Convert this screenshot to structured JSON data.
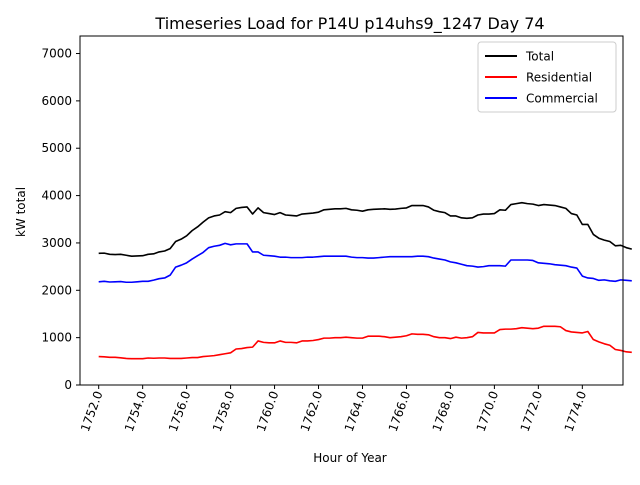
{
  "chart_data": {
    "type": "line",
    "title": "Timeseries Load for P14U p14uhs9_1247  Day 74",
    "xlabel": "Hour of Year",
    "ylabel": "kW total",
    "xlim": [
      1751.15,
      1775.85
    ],
    "ylim": [
      0,
      7370
    ],
    "xticks": [
      1752,
      1754,
      1756,
      1758,
      1760,
      1762,
      1764,
      1766,
      1768,
      1770,
      1772,
      1774
    ],
    "xtick_labels": [
      "1752.0",
      "1754.0",
      "1756.0",
      "1758.0",
      "1760.0",
      "1762.0",
      "1764.0",
      "1766.0",
      "1768.0",
      "1770.0",
      "1772.0",
      "1774.0"
    ],
    "yticks": [
      0,
      1000,
      2000,
      3000,
      4000,
      5000,
      6000,
      7000
    ],
    "ytick_labels": [
      "0",
      "1000",
      "2000",
      "3000",
      "4000",
      "5000",
      "6000",
      "7000"
    ],
    "grid": false,
    "legend_position": "top-right",
    "x_start": 1752.0,
    "x_step": 0.25,
    "series": [
      {
        "name": "Total",
        "color": "#000000",
        "values": [
          2780,
          2785,
          2760,
          2755,
          2760,
          2740,
          2720,
          2725,
          2730,
          2760,
          2770,
          2810,
          2830,
          2880,
          3030,
          3080,
          3150,
          3260,
          3340,
          3440,
          3530,
          3570,
          3590,
          3660,
          3640,
          3730,
          3750,
          3760,
          3610,
          3740,
          3640,
          3620,
          3600,
          3640,
          3590,
          3580,
          3570,
          3610,
          3620,
          3630,
          3650,
          3700,
          3710,
          3720,
          3720,
          3730,
          3700,
          3690,
          3670,
          3700,
          3710,
          3715,
          3720,
          3710,
          3715,
          3730,
          3740,
          3790,
          3790,
          3790,
          3760,
          3690,
          3660,
          3640,
          3570,
          3570,
          3530,
          3520,
          3530,
          3590,
          3610,
          3610,
          3620,
          3700,
          3690,
          3810,
          3830,
          3850,
          3830,
          3820,
          3790,
          3810,
          3800,
          3790,
          3760,
          3730,
          3620,
          3590,
          3390,
          3390,
          3180,
          3100,
          3060,
          3030,
          2940,
          2950,
          2900,
          2870
        ]
      },
      {
        "name": "Residential",
        "color": "#ff0000",
        "values": [
          600,
          595,
          585,
          585,
          575,
          560,
          555,
          555,
          555,
          570,
          565,
          570,
          570,
          560,
          560,
          560,
          570,
          580,
          580,
          600,
          610,
          620,
          640,
          660,
          680,
          760,
          770,
          790,
          800,
          930,
          900,
          890,
          890,
          930,
          900,
          900,
          890,
          930,
          930,
          940,
          960,
          990,
          990,
          1000,
          1000,
          1010,
          1000,
          990,
          990,
          1030,
          1030,
          1030,
          1020,
          1000,
          1010,
          1020,
          1040,
          1080,
          1070,
          1070,
          1060,
          1020,
          1000,
          1000,
          980,
          1010,
          990,
          1000,
          1020,
          1110,
          1100,
          1100,
          1100,
          1170,
          1180,
          1180,
          1190,
          1210,
          1200,
          1190,
          1200,
          1240,
          1240,
          1240,
          1230,
          1150,
          1120,
          1110,
          1100,
          1130,
          960,
          910,
          870,
          840,
          750,
          730,
          700,
          690
        ]
      },
      {
        "name": "Commercial",
        "color": "#0000ff",
        "values": [
          2180,
          2190,
          2175,
          2180,
          2185,
          2170,
          2170,
          2180,
          2190,
          2190,
          2215,
          2245,
          2260,
          2320,
          2490,
          2530,
          2580,
          2660,
          2730,
          2800,
          2900,
          2930,
          2950,
          2990,
          2960,
          2980,
          2980,
          2980,
          2810,
          2810,
          2740,
          2730,
          2720,
          2700,
          2700,
          2690,
          2690,
          2690,
          2700,
          2700,
          2710,
          2720,
          2720,
          2720,
          2720,
          2720,
          2700,
          2690,
          2690,
          2680,
          2680,
          2690,
          2700,
          2710,
          2710,
          2710,
          2710,
          2710,
          2720,
          2720,
          2710,
          2680,
          2660,
          2640,
          2600,
          2580,
          2550,
          2520,
          2510,
          2490,
          2500,
          2520,
          2520,
          2520,
          2510,
          2640,
          2640,
          2640,
          2640,
          2630,
          2580,
          2570,
          2560,
          2540,
          2530,
          2520,
          2490,
          2470,
          2300,
          2260,
          2250,
          2210,
          2220,
          2200,
          2190,
          2220,
          2210,
          2200
        ]
      }
    ]
  }
}
